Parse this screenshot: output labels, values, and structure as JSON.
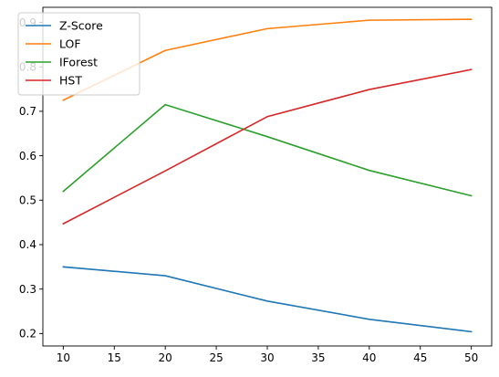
{
  "chart_data": {
    "type": "line",
    "title": "",
    "xlabel": "",
    "ylabel": "",
    "x": [
      10,
      20,
      30,
      40,
      50
    ],
    "xlim": [
      8,
      52
    ],
    "ylim": [
      0.172,
      0.934
    ],
    "xticks": [
      10,
      15,
      20,
      25,
      30,
      35,
      40,
      45,
      50
    ],
    "yticks": [
      0.2,
      0.3,
      0.4,
      0.5,
      0.6,
      0.7,
      0.8,
      0.9
    ],
    "xtick_labels": [
      "10",
      "15",
      "20",
      "25",
      "30",
      "35",
      "40",
      "45",
      "50"
    ],
    "ytick_labels": [
      "0.2",
      "0.3",
      "0.4",
      "0.5",
      "0.6",
      "0.7",
      "0.8",
      "0.9"
    ],
    "grid": false,
    "legend_position": "top-left",
    "series": [
      {
        "name": "Z-Score",
        "color": "#1f77b4",
        "values": [
          0.35,
          0.33,
          0.273,
          0.232,
          0.204
        ]
      },
      {
        "name": "LOF",
        "color": "#ff7f0e",
        "values": [
          0.725,
          0.837,
          0.886,
          0.905,
          0.907
        ]
      },
      {
        "name": "IForest",
        "color": "#2ca02c",
        "values": [
          0.52,
          0.715,
          0.643,
          0.567,
          0.51
        ]
      },
      {
        "name": "HST",
        "color": "#d62728",
        "values": [
          0.447,
          0.566,
          0.688,
          0.749,
          0.794
        ]
      }
    ]
  }
}
